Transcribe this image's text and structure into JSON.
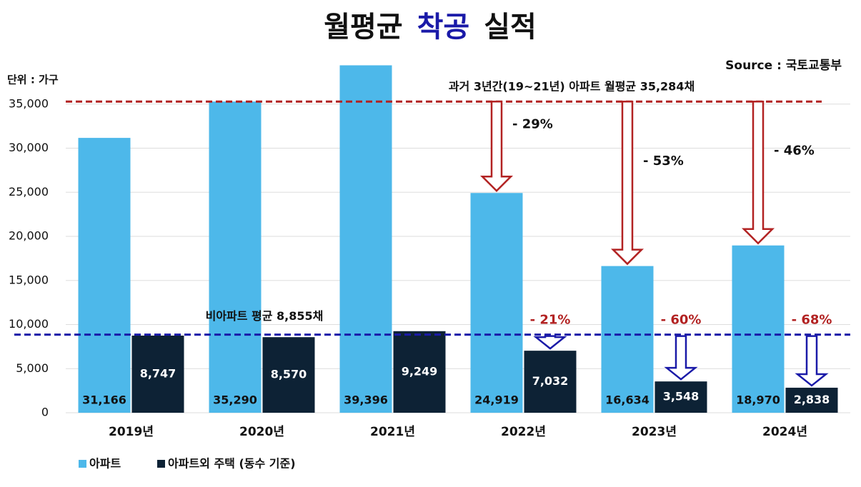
{
  "chart_data": {
    "type": "bar",
    "title_parts": [
      {
        "text": "월평균",
        "color": "#111111"
      },
      {
        "text": "착공",
        "color": "#1a1aa8"
      },
      {
        "text": "실적",
        "color": "#111111"
      }
    ],
    "source": "Source : 국토교통부",
    "unit_label": "단위 : 가구",
    "categories": [
      "2019년",
      "2020년",
      "2021년",
      "2022년",
      "2023년",
      "2024년"
    ],
    "series": [
      {
        "name": "아파트",
        "color": "#4db8ea",
        "values": [
          31166,
          35290,
          39396,
          24919,
          16634,
          18970
        ],
        "value_labels": [
          "31,166",
          "35,290",
          "39,396",
          "24,919",
          "16,634",
          "18,970"
        ],
        "change_labels": [
          null,
          null,
          null,
          "- 29%",
          "- 53%",
          "- 46%"
        ]
      },
      {
        "name": "아파트외 주택 (동수 기준)",
        "color": "#0d2235",
        "values": [
          8747,
          8570,
          9249,
          7032,
          3548,
          2838
        ],
        "value_labels": [
          "8,747",
          "8,570",
          "9,249",
          "7,032",
          "3,548",
          "2,838"
        ],
        "change_labels": [
          null,
          null,
          null,
          "- 21%",
          "- 60%",
          "- 68%"
        ]
      }
    ],
    "reference_lines": [
      {
        "value": 35284,
        "label": "과거 3년간(19~21년) 아파트 월평균 35,284채",
        "color": "#b22222"
      },
      {
        "value": 8855,
        "label": "비아파트 평균 8,855채",
        "color": "#1a1aa8"
      }
    ],
    "ylim": [
      0,
      40000
    ],
    "yticks": [
      0,
      {
        "value": 5000,
        "label": "5,000"
      },
      {
        "value": 10000,
        "label": "10,000"
      },
      {
        "value": 15000,
        "label": "15,000"
      },
      {
        "value": 20000,
        "label": "20,000"
      },
      {
        "value": 25000,
        "label": "25,000"
      },
      {
        "value": 30000,
        "label": "30,000"
      },
      {
        "value": 35000,
        "label": "35,000"
      }
    ],
    "grid": true
  }
}
